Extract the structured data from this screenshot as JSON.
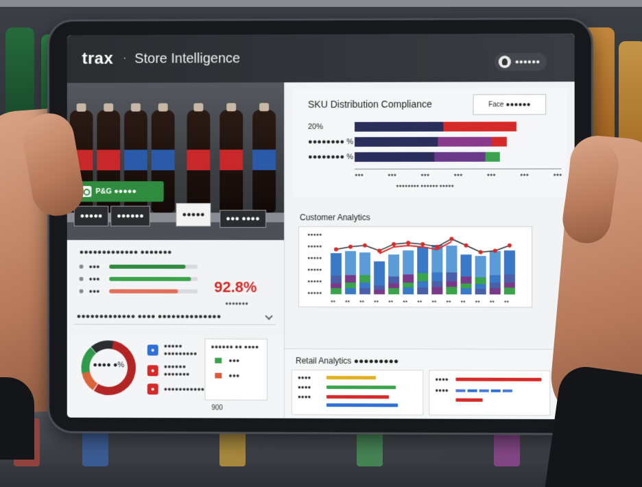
{
  "app": {
    "brand": "trax",
    "separator": "·",
    "title": "Store Intelligence",
    "user_label": "●●●●●●"
  },
  "shelf_view": {
    "detection_tag": "P&G ●●●●●",
    "chip_1": "●●●●●",
    "chip_2": "●●●●●●",
    "chip_3": "●●●●●",
    "chip_4": "●●● ●●●●"
  },
  "compliance_kpi": {
    "title": "●●●●●●●●●●●●● ●●●●●●●",
    "rows": [
      {
        "label": "●●●",
        "value": 0.86,
        "color": "#2f8c3e"
      },
      {
        "label": "●●●",
        "value": 0.92,
        "color": "#3aa34b"
      },
      {
        "label": "●●●",
        "value": 0.78,
        "color": "#e0705a"
      }
    ],
    "big_value": "92.8%",
    "note": "●●●●●●●",
    "dropdown": "●●●●●●●●●●●●● ●●●● ●●●●●●●●●●●●●●"
  },
  "share_donut": {
    "center_label": "●●●● ●%",
    "legend": [
      {
        "text": "●●●●● ●●●●●●●●●",
        "color": "#2f6fd6",
        "icon": "●"
      },
      {
        "text": "●●●●●● ●●●●●●●",
        "color": "#d62a28",
        "icon": "●"
      },
      {
        "text": "●●●●●●●●●●●●●●●●",
        "color": "#d62a28",
        "icon": "●"
      }
    ],
    "mini_title": "●●●●●● ●● ●●●●",
    "mini_rows": [
      {
        "label": "●●●",
        "color": "#3aa34b"
      },
      {
        "label": "●●●",
        "color": "#e05a3a"
      }
    ],
    "mini_footer": "900"
  },
  "sku_distribution": {
    "title": "SKU Distribution Compliance",
    "tab_label": "Face ●●●●●●",
    "rows": [
      {
        "label": "20%",
        "fill": 0.98
      },
      {
        "label": "●●●●●●●● %",
        "fill": 0.92
      },
      {
        "label": "●●●●●●●● %",
        "fill": 0.88
      }
    ],
    "ticks": [
      "●●●",
      "●●●",
      "●●●",
      "●●●",
      "●●●",
      "●●●",
      "●●●"
    ],
    "xlabel": "●●●●●●●● ●●●●●● ●●●●●"
  },
  "customer_analytics": {
    "title": "Customer Analytics",
    "y_ticks": [
      "●●●●●",
      "●●●●●",
      "●●●●●",
      "●●●●●",
      "●●●●●",
      "●●●●●"
    ],
    "columns": [
      {
        "v": 0.63
      },
      {
        "v": 0.66
      },
      {
        "v": 0.64
      },
      {
        "v": 0.5
      },
      {
        "v": 0.6
      },
      {
        "v": 0.67
      },
      {
        "v": 0.72
      },
      {
        "v": 0.75
      },
      {
        "v": 0.74
      },
      {
        "v": 0.6
      },
      {
        "v": 0.58
      },
      {
        "v": 0.66
      },
      {
        "v": 0.67
      }
    ],
    "line": [
      0.64,
      0.68,
      0.7,
      0.62,
      0.72,
      0.74,
      0.72,
      0.68,
      0.8,
      0.7,
      0.6,
      0.62,
      0.7
    ]
  },
  "retail_analytics": {
    "title": "Retail Analytics ●●●●●●●●●",
    "left_rows": [
      {
        "label": "●●●●",
        "bars": [
          {
            "w": 0.55,
            "c": "#e0b020"
          }
        ]
      },
      {
        "label": "●●●●",
        "bars": [
          {
            "w": 0.78,
            "c": "#3aa34b"
          }
        ]
      },
      {
        "label": "●●●●",
        "bars": [
          {
            "w": 0.7,
            "c": "#d62a28"
          }
        ]
      },
      {
        "label": "",
        "bars": [
          {
            "w": 0.8,
            "c": "#2f6fd6"
          }
        ]
      }
    ],
    "right_rows": [
      {
        "label": "●●●●",
        "c": "#d62a28",
        "w": 0.95
      },
      {
        "label": "●●●●",
        "c": "#2f6fd6",
        "w": 0.7
      },
      {
        "label": "",
        "c": "#d62a28",
        "w": 0.3
      }
    ]
  }
}
